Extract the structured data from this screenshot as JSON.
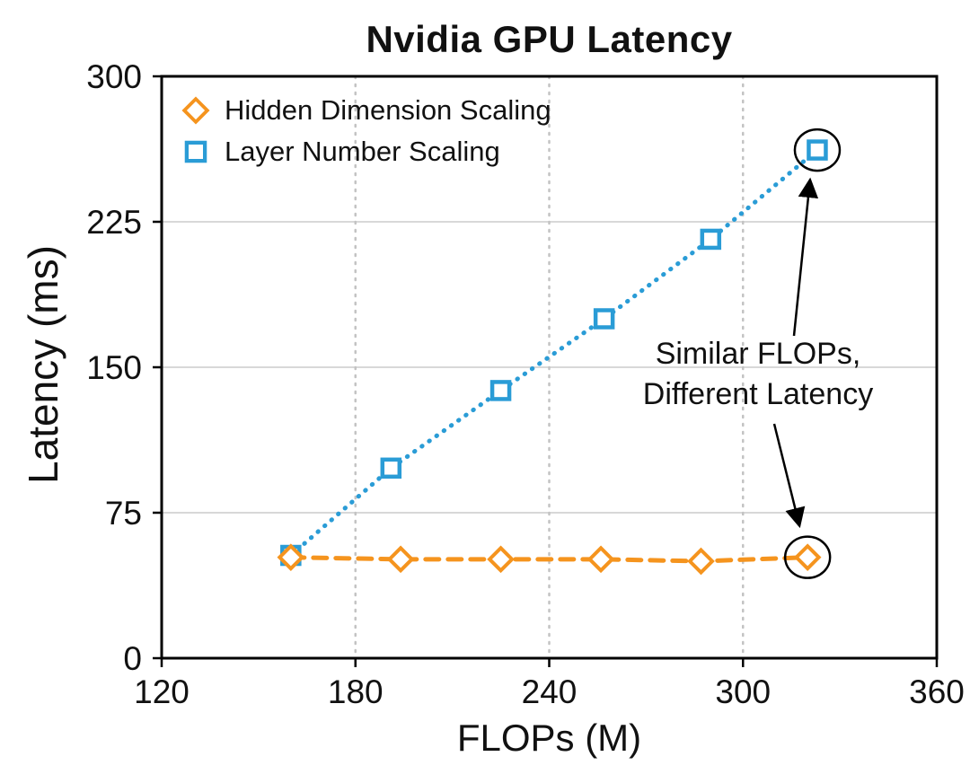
{
  "chart_data": {
    "type": "scatter",
    "title": "Nvidia GPU Latency",
    "xlabel": "FLOPs (M)",
    "ylabel": "Latency (ms)",
    "xlim": [
      120,
      360
    ],
    "ylim": [
      0,
      300
    ],
    "x_ticks": [
      120,
      180,
      240,
      300,
      360
    ],
    "y_ticks": [
      0,
      75,
      150,
      225,
      300
    ],
    "grid": {
      "vertical_ticks": [
        180,
        240,
        300
      ],
      "horizontal_ticks": [
        75,
        150,
        225,
        300
      ]
    },
    "legend_position": "upper-left-inside",
    "series": [
      {
        "name": "Hidden Dimension Scaling",
        "marker": "diamond",
        "line_style": "dashed",
        "color": "#F5941E",
        "x": [
          160,
          194,
          225,
          256,
          287,
          320
        ],
        "y": [
          52,
          51,
          51,
          51,
          50,
          52
        ],
        "circled_point_index": 5
      },
      {
        "name": "Layer Number Scaling",
        "marker": "square",
        "line_style": "dotted",
        "color": "#2A9CD6",
        "x": [
          160,
          191,
          225,
          257,
          290,
          323
        ],
        "y": [
          53,
          98,
          138,
          175,
          216,
          262
        ],
        "circled_point_index": 5
      }
    ],
    "annotation": {
      "line1": "Similar FLOPs,",
      "line2": "Different Latency"
    }
  }
}
